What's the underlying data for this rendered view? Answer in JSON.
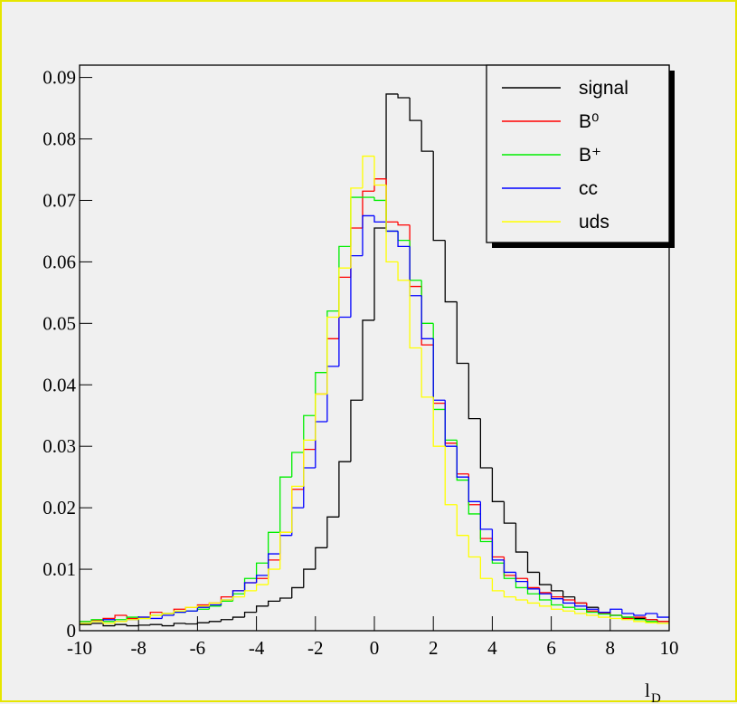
{
  "chart_data": {
    "type": "step-histogram",
    "x_label": "l",
    "x_label_sub": "D",
    "xlim": [
      -10,
      10
    ],
    "ylim": [
      0,
      0.092
    ],
    "xticks": [
      -10,
      -8,
      -6,
      -4,
      -2,
      0,
      2,
      4,
      6,
      8,
      10
    ],
    "yticks": [
      0,
      0.01,
      0.02,
      0.03,
      0.04,
      0.05,
      0.06,
      0.07,
      0.08,
      0.09
    ],
    "legend": "top-right",
    "bins": [
      -10,
      -9.6,
      -9.2,
      -8.8,
      -8.4,
      -8,
      -7.6,
      -7.2,
      -6.8,
      -6.4,
      -6,
      -5.6,
      -5.2,
      -4.8,
      -4.4,
      -4,
      -3.6,
      -3.2,
      -2.8,
      -2.4,
      -2,
      -1.6,
      -1.2,
      -0.8,
      -0.4,
      0,
      0.4,
      0.8,
      1.2,
      1.6,
      2,
      2.4,
      2.8,
      3.2,
      3.6,
      4,
      4.4,
      4.8,
      5.2,
      5.6,
      6,
      6.4,
      6.8,
      7.2,
      7.6,
      8,
      8.4,
      8.8,
      9.2,
      9.6,
      10
    ],
    "series": [
      {
        "name": "signal",
        "color": "#000000",
        "values": [
          0.001,
          0.0012,
          0.0008,
          0.001,
          0.0008,
          0.0009,
          0.001,
          0.0008,
          0.0012,
          0.0011,
          0.0013,
          0.0015,
          0.0018,
          0.0022,
          0.003,
          0.004,
          0.0048,
          0.0053,
          0.007,
          0.01,
          0.0135,
          0.0185,
          0.0275,
          0.0375,
          0.0505,
          0.0655,
          0.0873,
          0.0867,
          0.083,
          0.078,
          0.0635,
          0.0535,
          0.0435,
          0.0345,
          0.0265,
          0.021,
          0.0175,
          0.0128,
          0.0095,
          0.0075,
          0.0065,
          0.0055,
          0.0045,
          0.0038,
          0.003,
          0.0025,
          0.0022,
          0.002,
          0.0018,
          0.0015
        ]
      },
      {
        "name": "B⁰",
        "color": "#ff0000",
        "values": [
          0.0015,
          0.0016,
          0.002,
          0.0025,
          0.002,
          0.0022,
          0.003,
          0.0028,
          0.0035,
          0.0038,
          0.0042,
          0.0045,
          0.0055,
          0.0065,
          0.0078,
          0.0085,
          0.0115,
          0.016,
          0.023,
          0.0295,
          0.0385,
          0.0475,
          0.0575,
          0.0655,
          0.0715,
          0.0735,
          0.0665,
          0.066,
          0.056,
          0.0465,
          0.037,
          0.0305,
          0.0255,
          0.0205,
          0.015,
          0.012,
          0.009,
          0.0085,
          0.007,
          0.0062,
          0.0055,
          0.005,
          0.0045,
          0.0032,
          0.0028,
          0.0025,
          0.002,
          0.0022,
          0.0018,
          0.0015
        ]
      },
      {
        "name": "B⁺",
        "color": "#00ee00",
        "values": [
          0.0015,
          0.0018,
          0.0015,
          0.0018,
          0.0022,
          0.002,
          0.0025,
          0.0028,
          0.003,
          0.0032,
          0.0035,
          0.004,
          0.0048,
          0.006,
          0.0085,
          0.011,
          0.016,
          0.025,
          0.029,
          0.035,
          0.042,
          0.052,
          0.0625,
          0.0705,
          0.0705,
          0.07,
          0.065,
          0.0635,
          0.057,
          0.05,
          0.036,
          0.031,
          0.0245,
          0.019,
          0.0145,
          0.011,
          0.0085,
          0.007,
          0.006,
          0.005,
          0.0042,
          0.0038,
          0.0035,
          0.003,
          0.0027,
          0.0025,
          0.0022,
          0.0018,
          0.0015,
          0.0012
        ]
      },
      {
        "name": "cc",
        "color": "#0000ff",
        "values": [
          0.0012,
          0.0015,
          0.0018,
          0.0015,
          0.0018,
          0.0022,
          0.002,
          0.0025,
          0.003,
          0.0032,
          0.0038,
          0.0042,
          0.005,
          0.0065,
          0.0078,
          0.009,
          0.0125,
          0.0155,
          0.02,
          0.0265,
          0.034,
          0.043,
          0.051,
          0.061,
          0.0675,
          0.0665,
          0.065,
          0.0625,
          0.0545,
          0.0475,
          0.0375,
          0.03,
          0.025,
          0.021,
          0.0165,
          0.0115,
          0.0095,
          0.008,
          0.0068,
          0.006,
          0.0052,
          0.0045,
          0.004,
          0.0035,
          0.003,
          0.0035,
          0.0028,
          0.0025,
          0.0028,
          0.0022
        ]
      },
      {
        "name": "uds",
        "color": "#ffff00",
        "values": [
          0.0012,
          0.0015,
          0.0012,
          0.0015,
          0.0018,
          0.002,
          0.0025,
          0.0028,
          0.0032,
          0.0038,
          0.004,
          0.0045,
          0.005,
          0.0055,
          0.0065,
          0.0075,
          0.01,
          0.016,
          0.0235,
          0.031,
          0.0385,
          0.051,
          0.059,
          0.072,
          0.0772,
          0.0725,
          0.06,
          0.057,
          0.046,
          0.038,
          0.03,
          0.0205,
          0.0155,
          0.012,
          0.0085,
          0.0065,
          0.0055,
          0.005,
          0.0045,
          0.004,
          0.0035,
          0.0032,
          0.0028,
          0.0025,
          0.0022,
          0.002,
          0.0018,
          0.0015,
          0.0013,
          0.0012
        ]
      }
    ]
  }
}
